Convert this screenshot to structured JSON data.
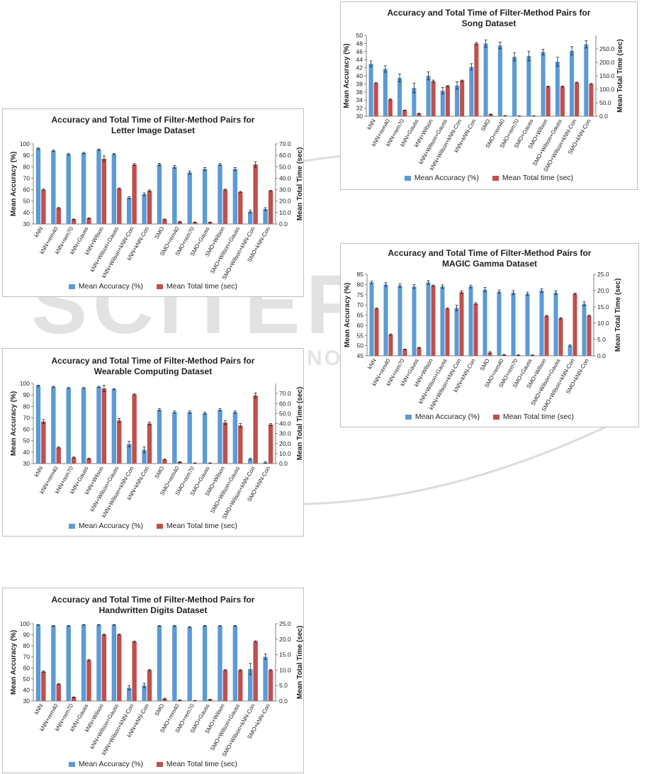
{
  "legend": {
    "accuracy": "Mean Accuracy (%)",
    "time": "Mean Total time (sec)"
  },
  "colors": {
    "accuracy": "#5b9bd5",
    "time": "#c0504d",
    "watermark": "#d9d9d9"
  },
  "watermark": {
    "main": "SCITEPRESS",
    "sub": "SCIENCE AND TECHNOLOGY PUBLICATIONS"
  },
  "chart_data": [
    {
      "id": "song",
      "type": "bar",
      "title_line1": "Accuracy and Total Time of Filter-Method Pairs for",
      "title_line2": "Song Dataset",
      "ylabel": "Mean Accuracy (%)",
      "y2label": "Mean Total Time (sec)",
      "ylim": [
        30,
        50
      ],
      "yticks": [
        30,
        32,
        34,
        36,
        38,
        40,
        42,
        44,
        46,
        48,
        50
      ],
      "y2lim": [
        0,
        300
      ],
      "y2ticks": [
        "0.0",
        "50.0",
        "100.0",
        "150.0",
        "200.0",
        "250.0"
      ],
      "grid": false,
      "legend_position": "bottom",
      "categories": [
        "kNN",
        "kNN+rem40",
        "kNN+rem70",
        "kNN+Gauss",
        "kNN+Wilson",
        "kNN+Wilson+Gauss",
        "kNN+Wilson+kNN-Con",
        "kNN+kNN-Con",
        "SMO",
        "SMO+rem40",
        "SMO+rem70",
        "SMO+Gauss",
        "SMO+Wilson",
        "SMO+Wilson+Gauss",
        "SMO+Wilson+kNN-Con",
        "SMO+kNN-Con"
      ],
      "series": [
        {
          "name": "Mean Accuracy (%)",
          "values": [
            43.0,
            41.7,
            39.5,
            37.0,
            40.0,
            36.3,
            37.6,
            42.2,
            48.0,
            47.5,
            44.7,
            44.9,
            45.9,
            43.5,
            46.2,
            47.8
          ],
          "errors": [
            0.7,
            0.8,
            1.0,
            1.2,
            1.0,
            0.8,
            0.9,
            0.8,
            0.9,
            0.8,
            1.0,
            1.2,
            0.7,
            1.1,
            1.0,
            0.9
          ]
        },
        {
          "name": "Mean Total time (sec)",
          "values": [
            123,
            62,
            22,
            10,
            130,
            112,
            132,
            270,
            7,
            2,
            1,
            1,
            110,
            110,
            125,
            120
          ],
          "errors": [
            2,
            2,
            1,
            1,
            4,
            2,
            2,
            4,
            1,
            0.5,
            0.5,
            0.5,
            2,
            2,
            2,
            2
          ]
        }
      ]
    },
    {
      "id": "letter",
      "type": "bar",
      "title_line1": "Accuracy and Total Time of Filter-Method Pairs for",
      "title_line2": "Letter Image Dataset",
      "ylabel": "Mean Accuracy (%)",
      "y2label": "Mean Total Time (sec)",
      "ylim": [
        30,
        100
      ],
      "yticks": [
        30,
        40,
        50,
        60,
        70,
        80,
        90,
        100
      ],
      "y2lim": [
        0,
        70
      ],
      "y2ticks": [
        "0.0",
        "10.0",
        "20.0",
        "30.0",
        "40.0",
        "50.0",
        "60.0",
        "70.0"
      ],
      "grid": false,
      "legend_position": "bottom",
      "categories": [
        "kNN",
        "kNN+rem40",
        "kNN+rem70",
        "kNN+Gauss",
        "kNN+Wilson",
        "kNN+Wilson+Gauss",
        "kNN+Wilson+kNN-Con",
        "kNN+kNN-Con",
        "SMO",
        "SMO+rem40",
        "SMO+rem70",
        "SMO+Gauss",
        "SMO+Wilson",
        "SMO+Wilson+Gauss",
        "SMO+Wilson+kNN-Con",
        "SMO+kNN-Con"
      ],
      "series": [
        {
          "name": "Mean Accuracy (%)",
          "values": [
            96,
            94,
            91,
            92,
            95,
            91,
            53,
            56,
            82,
            80,
            75,
            78,
            82,
            78,
            41,
            43
          ],
          "errors": [
            0.6,
            0.6,
            0.8,
            0.6,
            0.6,
            0.6,
            1.0,
            1.2,
            1.0,
            1.2,
            1.3,
            1.3,
            0.8,
            1.3,
            1.3,
            1.2
          ]
        },
        {
          "name": "Mean Total time (sec)",
          "values": [
            30,
            14,
            4,
            5,
            57,
            31,
            52,
            29,
            4,
            2,
            1.5,
            1.5,
            30,
            28,
            52,
            29
          ],
          "errors": [
            0.5,
            0.5,
            0.3,
            0.3,
            2.5,
            0.5,
            0.8,
            0.8,
            0.4,
            0.3,
            0.2,
            0.2,
            0.5,
            0.5,
            2.5,
            0.5
          ]
        }
      ]
    },
    {
      "id": "magic",
      "type": "bar",
      "title_line1": "Accuracy and Total Time of Filter-Method Pairs for",
      "title_line2": "MAGIC Gamma Dataset",
      "ylabel": "Mean Accuracy (%)",
      "y2label": "Mean Total Time (sec)",
      "ylim": [
        45,
        85
      ],
      "yticks": [
        45,
        50,
        55,
        60,
        65,
        70,
        75,
        80,
        85
      ],
      "y2lim": [
        0,
        25
      ],
      "y2ticks": [
        "0.0",
        "5.0",
        "10.0",
        "15.0",
        "20.0",
        "25.0"
      ],
      "grid": false,
      "legend_position": "bottom",
      "categories": [
        "kNN",
        "kNN+rem40",
        "kNN+rem70",
        "kNN+Gauss",
        "kNN+Wilson",
        "kNN+Wilson+Gauss",
        "kNN+Wilson+kNN-Con",
        "kNN+kNN-Con",
        "SMO",
        "SMO+rem40",
        "SMO+rem70",
        "SMO+Gauss",
        "SMO+Wilson",
        "SMO+Wilson+Gauss",
        "SMO+Wilson+kNN-Con",
        "SMO+kNN-Con"
      ],
      "series": [
        {
          "name": "Mean Accuracy (%)",
          "values": [
            81,
            80,
            79.5,
            79,
            81,
            79,
            68.5,
            79,
            77.5,
            76.5,
            76,
            75.5,
            77,
            76,
            50,
            70.5
          ],
          "errors": [
            0.6,
            0.9,
            0.8,
            0.9,
            0.9,
            0.8,
            1.3,
            0.6,
            1.0,
            0.8,
            1.0,
            0.8,
            0.8,
            0.9,
            0.4,
            1.0
          ]
        },
        {
          "name": "Mean Total time (sec)",
          "values": [
            14.5,
            6.5,
            2,
            2.5,
            21.5,
            14.5,
            19.5,
            16,
            1,
            0.3,
            0.2,
            0.2,
            12.2,
            11.5,
            19,
            12.3
          ],
          "errors": [
            0.2,
            0.2,
            0.1,
            0.1,
            0.2,
            0.2,
            0.4,
            0.3,
            0.3,
            0.1,
            0.1,
            0.1,
            0.2,
            0.2,
            0.2,
            0.2
          ]
        }
      ]
    },
    {
      "id": "wearable",
      "type": "bar",
      "title_line1": "Accuracy and Total Time of Filter-Method Pairs for",
      "title_line2": "Wearable Computing Dataset",
      "ylabel": "Mean Accuracy (%)",
      "y2label": "Mean Total Time (sec)",
      "ylim": [
        30,
        100
      ],
      "yticks": [
        30,
        40,
        50,
        60,
        70,
        80,
        90,
        100
      ],
      "y2lim": [
        0,
        80
      ],
      "y2ticks": [
        "0.0",
        "10.0",
        "20.0",
        "30.0",
        "40.0",
        "50.0",
        "60.0",
        "70.0"
      ],
      "grid": false,
      "legend_position": "bottom",
      "categories": [
        "kNN",
        "kNN+rem40",
        "kNN+rem70",
        "kNN+Gauss",
        "kNN+Wilson",
        "kNN+Wilson+Gauss",
        "kNN+Wilson+kNN-Con",
        "kNN+kNN-Con",
        "SMO",
        "SMO+rem40",
        "SMO+rem70",
        "SMO+Gauss",
        "SMO+Wilson",
        "SMO+Wilson+Gauss",
        "SMO+Wilson+kNN-Con",
        "SMO+kNN-Con"
      ],
      "series": [
        {
          "name": "Mean Accuracy (%)",
          "values": [
            98,
            97,
            96,
            96,
            97,
            95,
            47,
            42,
            77,
            75,
            75,
            74,
            77,
            75,
            34,
            31
          ],
          "errors": [
            0.5,
            0.5,
            0.5,
            0.5,
            0.5,
            0.5,
            2.5,
            2.5,
            1.0,
            1.0,
            1.0,
            1.0,
            1.0,
            1.0,
            0.8,
            0.7
          ]
        },
        {
          "name": "Mean Total time (sec)",
          "values": [
            42,
            16,
            6,
            5,
            75,
            43,
            69,
            40,
            4,
            1.5,
            0.5,
            0.5,
            41,
            38,
            68,
            39
          ],
          "errors": [
            2,
            0.5,
            0.5,
            0.5,
            3,
            2,
            0.8,
            1.5,
            0.5,
            0.3,
            0.2,
            0.2,
            2,
            2,
            2.5,
            1
          ]
        }
      ]
    },
    {
      "id": "digits",
      "type": "bar",
      "title_line1": "Accuracy and Total Time of Filter-Method Pairs for",
      "title_line2": "Handwritten Digits Dataset",
      "ylabel": "Mean Accuracy (%)",
      "y2label": "Mean Total Time (sec)",
      "ylim": [
        30,
        100
      ],
      "yticks": [
        30,
        40,
        50,
        60,
        70,
        80,
        90,
        100
      ],
      "y2lim": [
        0,
        25
      ],
      "y2ticks": [
        "0.0",
        "5.0",
        "10.0",
        "15.0",
        "20.0",
        "25.0"
      ],
      "grid": false,
      "legend_position": "bottom",
      "categories": [
        "kNN",
        "kNN+rem40",
        "kNN+rem70",
        "kNN+Gauss",
        "kNN+Wilson",
        "kNN+Wilson+Gauss",
        "kNN+Wilson+kNN-Con",
        "kNN+kNN-Con",
        "SMO",
        "SMO+rem40",
        "SMO+rem70",
        "SMO+Gauss",
        "SMO+Wilson",
        "SMO+Wilson+Gauss",
        "SMO+Wilson+kNN-Con",
        "SMO+kNN-Con"
      ],
      "series": [
        {
          "name": "Mean Accuracy (%)",
          "values": [
            99,
            98,
            98,
            99,
            99,
            99,
            42,
            44,
            98,
            98,
            97,
            98,
            98,
            98,
            59,
            70
          ],
          "errors": [
            0.3,
            0.3,
            0.3,
            0.3,
            0.3,
            0.3,
            2.0,
            2.0,
            0.3,
            0.5,
            0.5,
            0.3,
            0.3,
            0.3,
            5.0,
            2.5
          ]
        },
        {
          "name": "Mean Total time (sec)",
          "values": [
            9.5,
            5.5,
            1.2,
            13.2,
            21.5,
            21.5,
            19.2,
            10,
            0.7,
            0.3,
            0.15,
            0.5,
            10,
            10,
            19.3,
            10
          ],
          "errors": [
            0.2,
            0.2,
            0.1,
            0.2,
            0.2,
            0.2,
            0.2,
            0.2,
            0.2,
            0.1,
            0.05,
            0.1,
            0.2,
            0.2,
            0.2,
            0.2
          ]
        }
      ]
    }
  ]
}
